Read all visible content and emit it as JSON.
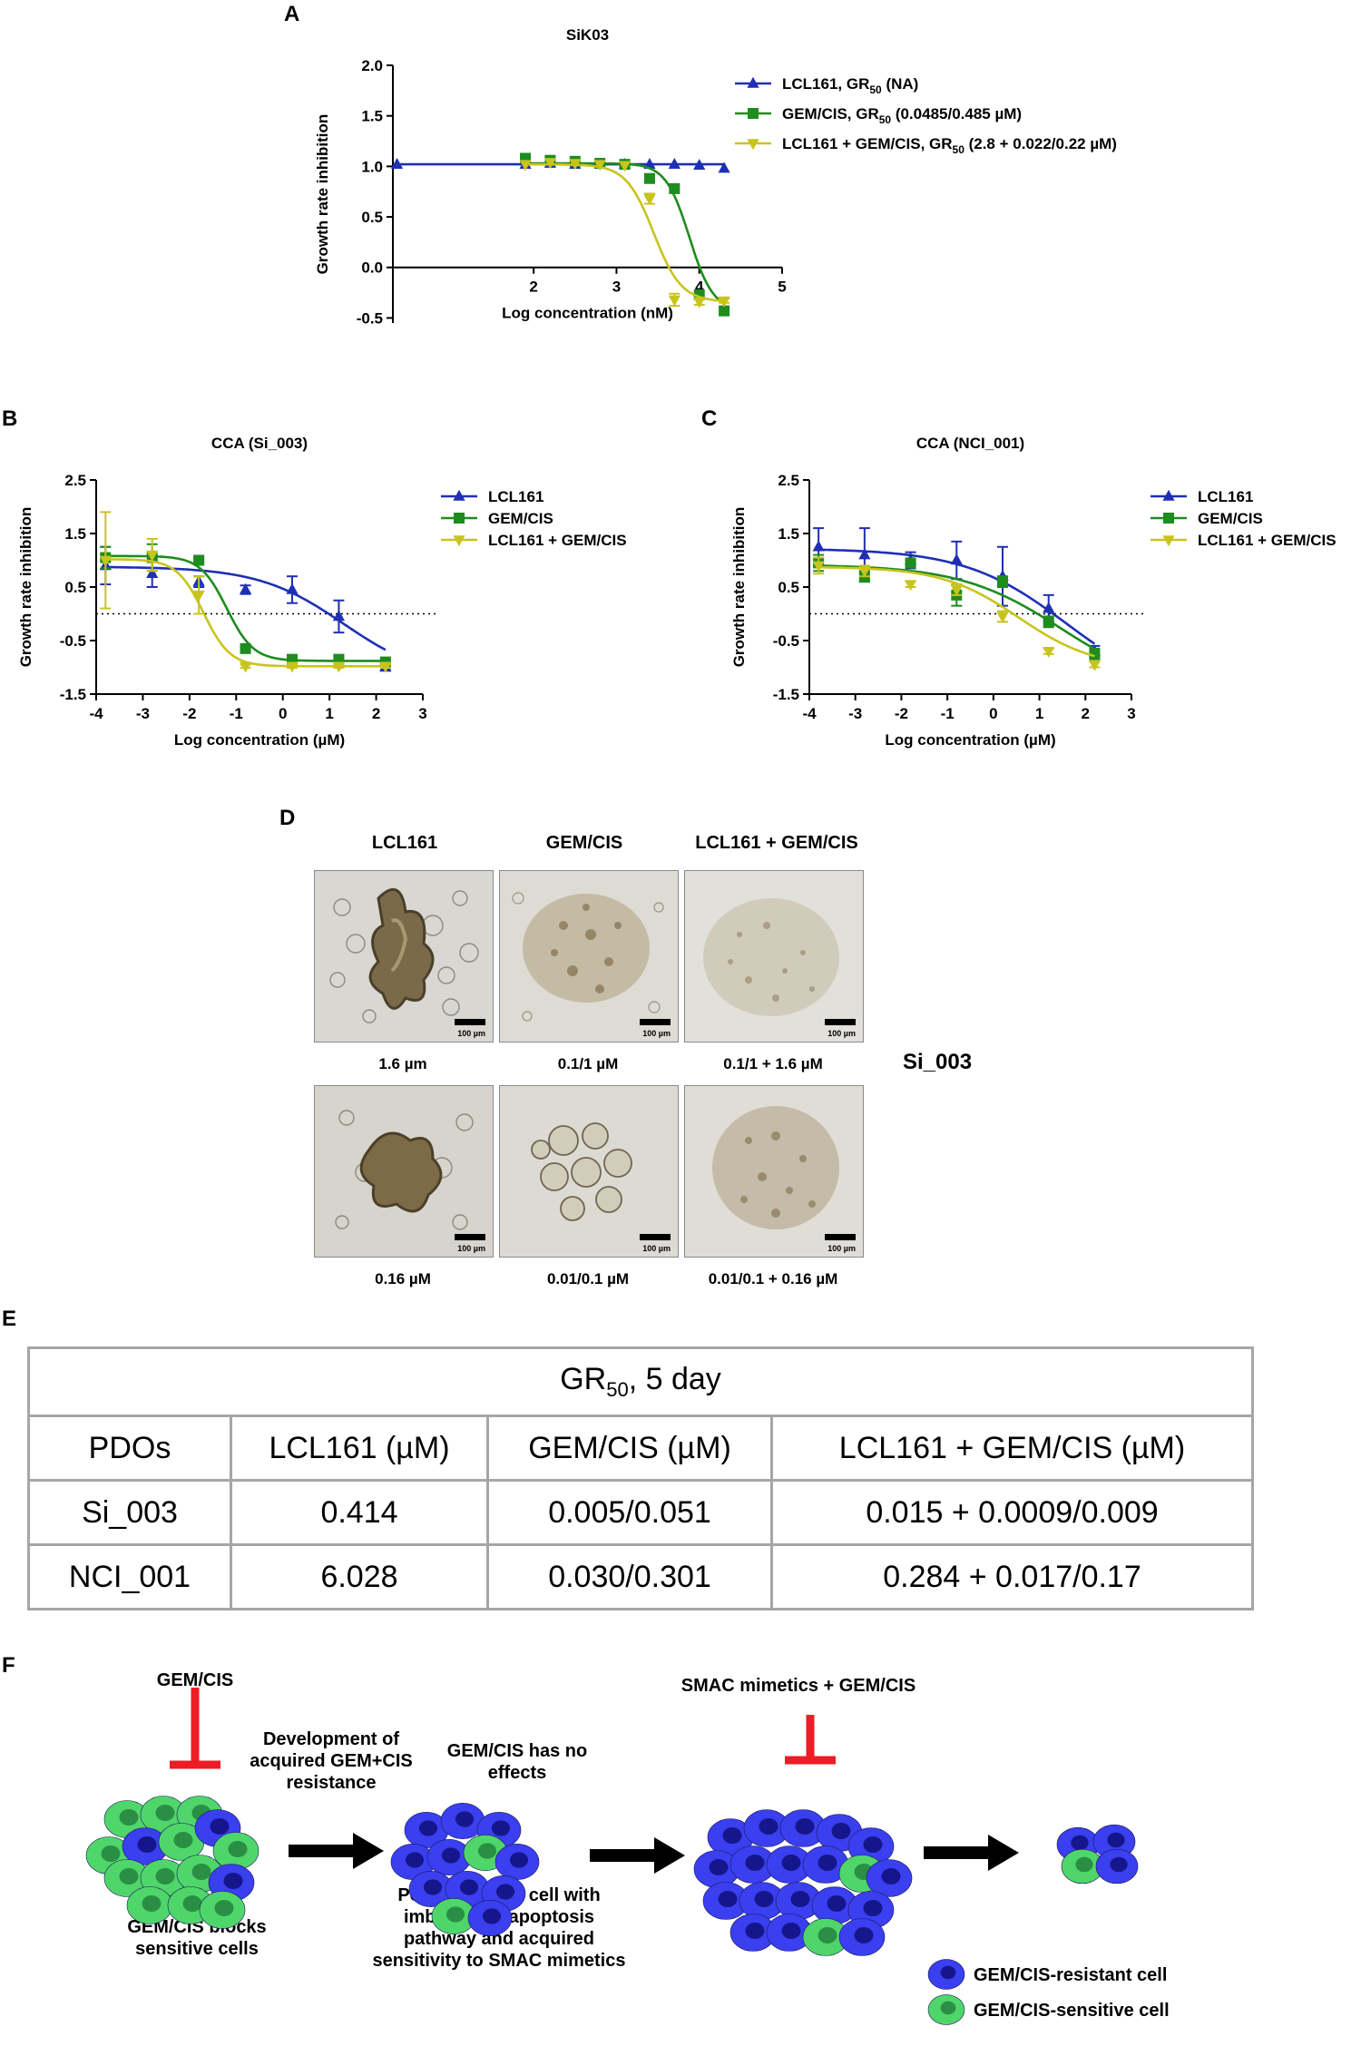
{
  "panels": {
    "A": "A",
    "B": "B",
    "C": "C",
    "D": "D",
    "E": "E",
    "F": "F"
  },
  "chart_data": [
    {
      "id": "A",
      "type": "line",
      "title": "SiK03",
      "xlabel": "Log concentration (nM)",
      "ylabel": "Growth rate inhibition",
      "xlim": [
        0.3,
        5
      ],
      "ylim": [
        -0.55,
        2.0
      ],
      "xticks": [
        "2",
        "3",
        "4",
        "5"
      ],
      "yticks": [
        "-0.5",
        "0.0",
        "0.5",
        "1.0",
        "1.5",
        "2.0"
      ],
      "reference_line": null,
      "series": [
        {
          "name": "LCL161",
          "legend_main": "LCL161, GR",
          "legend_sub": "50",
          "legend_rest": " (NA)",
          "color": "#1f2fb4",
          "marker": "triangle-up",
          "x": [
            0.35,
            1.9,
            2.2,
            2.5,
            2.8,
            3.1,
            3.4,
            3.7,
            4.0,
            4.3
          ],
          "y": [
            1.02,
            1.02,
            1.03,
            1.02,
            1.02,
            1.02,
            1.02,
            1.02,
            1.01,
            0.98
          ],
          "fit": {
            "top": 1.02,
            "bottom": 1.02,
            "ec": 4.0,
            "hill": 1
          }
        },
        {
          "name": "GEM/CIS",
          "legend_main": "GEM/CIS, GR",
          "legend_sub": "50",
          "legend_rest": " (0.0485/0.485 µM)",
          "color": "#1e8c1e",
          "marker": "square",
          "x": [
            1.9,
            2.2,
            2.5,
            2.8,
            3.1,
            3.4,
            3.7,
            4.0,
            4.3
          ],
          "y": [
            1.08,
            1.06,
            1.05,
            1.03,
            1.02,
            0.88,
            0.78,
            -0.27,
            -0.43
          ],
          "fit": {
            "top": 1.03,
            "bottom": -0.43,
            "ec": 3.88,
            "hill": 7
          }
        },
        {
          "name": "LCL161 + GEM/CIS",
          "legend_main": "LCL161 + GEM/CIS, GR",
          "legend_sub": "50",
          "legend_rest": " (2.8 + 0.022/0.22 µM)",
          "color": "#c8c41e",
          "marker": "triangle-down",
          "x": [
            1.9,
            2.2,
            2.5,
            2.8,
            3.1,
            3.4,
            3.7,
            4.0,
            4.3
          ],
          "y": [
            1.02,
            1.04,
            1.03,
            1.02,
            1.01,
            0.68,
            -0.32,
            -0.34,
            -0.33
          ],
          "err": [
            0,
            0,
            0,
            0,
            0,
            0.05,
            0.06,
            0.03,
            0.02
          ],
          "fit": {
            "top": 1.02,
            "bottom": -0.34,
            "ec": 3.45,
            "hill": 6
          }
        }
      ]
    },
    {
      "id": "B",
      "type": "line",
      "title": "CCA (Si_003)",
      "xlabel": "Log concentration (µM)",
      "ylabel": "Growth rate inhibition",
      "xlim": [
        -4,
        3
      ],
      "ylim": [
        -1.5,
        2.5
      ],
      "xticks": [
        "-4",
        "-3",
        "-2",
        "-1",
        "0",
        "1",
        "2",
        "3"
      ],
      "yticks": [
        "-1.5",
        "-0.5",
        "0.5",
        "1.5",
        "2.5"
      ],
      "reference_line": 0,
      "series": [
        {
          "name": "LCL161",
          "legend_main": "LCL161",
          "color": "#1f2fb4",
          "marker": "triangle-up",
          "x": [
            -3.8,
            -2.8,
            -1.8,
            -0.8,
            0.2,
            1.2,
            2.2
          ],
          "y": [
            0.9,
            0.75,
            0.6,
            0.45,
            0.45,
            -0.05,
            -1.0
          ],
          "err": [
            0.35,
            0.25,
            0.1,
            0.08,
            0.25,
            0.3,
            0.05
          ],
          "fit": {
            "top": 0.88,
            "bottom": -1.25,
            "ec": 1.3,
            "hill": 1.1
          }
        },
        {
          "name": "GEM/CIS",
          "legend_main": "GEM/CIS",
          "color": "#1e8c1e",
          "marker": "square",
          "x": [
            -3.8,
            -2.8,
            -1.8,
            -0.8,
            0.2,
            1.2,
            2.2
          ],
          "y": [
            1.05,
            1.05,
            1.0,
            -0.65,
            -0.85,
            -0.85,
            -0.9
          ],
          "err": [
            0.2,
            0.25,
            0.03,
            0.03,
            0.03,
            0.03,
            0.03
          ],
          "fit": {
            "top": 1.08,
            "bottom": -0.88,
            "ec": -1.2,
            "hill": 3.5
          }
        },
        {
          "name": "LCL161 + GEM/CIS",
          "legend_main": "LCL161 + GEM/CIS",
          "color": "#c8c41e",
          "marker": "triangle-down",
          "x": [
            -3.8,
            -2.8,
            -1.8,
            -0.8,
            0.2,
            1.2,
            2.2
          ],
          "y": [
            1.0,
            1.1,
            0.35,
            -0.98,
            -0.98,
            -0.98,
            -0.98
          ],
          "err": [
            0.9,
            0.3,
            0.35,
            0.03,
            0.03,
            0.03,
            0.03
          ],
          "fit": {
            "top": 1.02,
            "bottom": -0.98,
            "ec": -1.7,
            "hill": 3.5
          }
        }
      ]
    },
    {
      "id": "C",
      "type": "line",
      "title": "CCA (NCI_001)",
      "xlabel": "Log concentration (µM)",
      "ylabel": "Growth rate inhibition",
      "xlim": [
        -4,
        3
      ],
      "ylim": [
        -1.5,
        2.5
      ],
      "xticks": [
        "-4",
        "-3",
        "-2",
        "-1",
        "0",
        "1",
        "2",
        "3"
      ],
      "yticks": [
        "-1.5",
        "-0.5",
        "0.5",
        "1.5",
        "2.5"
      ],
      "reference_line": 0,
      "series": [
        {
          "name": "LCL161",
          "legend_main": "LCL161",
          "color": "#1f2fb4",
          "marker": "triangle-up",
          "x": [
            -3.8,
            -2.8,
            -1.8,
            -0.8,
            0.2,
            1.2,
            2.2
          ],
          "y": [
            1.25,
            1.1,
            1.0,
            1.0,
            0.7,
            0.1,
            -0.7
          ],
          "err": [
            0.35,
            0.5,
            0.15,
            0.35,
            0.55,
            0.25,
            0.1
          ],
          "fit": {
            "top": 1.22,
            "bottom": -1.6,
            "ec": 1.6,
            "hill": 0.9
          }
        },
        {
          "name": "GEM/CIS",
          "legend_main": "GEM/CIS",
          "color": "#1e8c1e",
          "marker": "square",
          "x": [
            -3.8,
            -2.8,
            -1.8,
            -0.8,
            0.2,
            1.2,
            2.2
          ],
          "y": [
            0.95,
            0.7,
            0.95,
            0.35,
            0.6,
            -0.15,
            -0.75
          ],
          "err": [
            0.15,
            0.1,
            0.05,
            0.2,
            0.1,
            0.1,
            0.1
          ],
          "fit": {
            "top": 0.92,
            "bottom": -1.5,
            "ec": 1.5,
            "hill": 0.9
          }
        },
        {
          "name": "LCL161 + GEM/CIS",
          "legend_main": "LCL161 + GEM/CIS",
          "color": "#c8c41e",
          "marker": "triangle-down",
          "x": [
            -3.8,
            -2.8,
            -1.8,
            -0.8,
            0.2,
            1.2,
            2.2
          ],
          "y": [
            0.9,
            0.8,
            0.55,
            0.45,
            -0.05,
            -0.7,
            -0.95
          ],
          "err": [
            0.15,
            0.1,
            0.05,
            0.1,
            0.1,
            0.05,
            0.05
          ],
          "fit": {
            "top": 0.88,
            "bottom": -1.02,
            "ec": 0.55,
            "hill": 1.2
          }
        }
      ]
    }
  ],
  "panel_d": {
    "headers": [
      "LCL161",
      "GEM/CIS",
      "LCL161 + GEM/CIS"
    ],
    "row_label": "Si_003",
    "scalebar": "100 µm",
    "captions_row1": [
      "1.6 µm",
      "0.1/1 µM",
      "0.1/1 + 1.6 µM"
    ],
    "captions_row2": [
      "0.16 µM",
      "0.01/0.1 µM",
      "0.01/0.1 + 0.16 µM"
    ]
  },
  "table": {
    "title_main": "GR",
    "title_sub": "50",
    "title_rest": ", 5 day",
    "columns": [
      "PDOs",
      "LCL161 (µM)",
      "GEM/CIS (µM)",
      "LCL161 + GEM/CIS (µM)"
    ],
    "rows": [
      [
        "Si_003",
        "0.414",
        "0.005/0.051",
        "0.015 + 0.0009/0.009"
      ],
      [
        "NCI_001",
        "6.028",
        "0.030/0.301",
        "0.284 + 0.017/0.17"
      ]
    ]
  },
  "schematic": {
    "gemcis_top": "GEM/CIS",
    "blocks_text": "GEM/CIS  blocks sensitive cells",
    "development_text": "Development of acquired GEM+CIS resistance",
    "no_effects_text": "GEM/CIS has no effects",
    "populations_text": "Populations of cell with imbalanced apoptosis pathway and acquired sensitivity to SMAC mimetics",
    "smac_text": "SMAC mimetics + GEM/CIS",
    "legend_resistant": "GEM/CIS-resistant cell",
    "legend_sensitive": "GEM/CIS-sensitive cell",
    "colors": {
      "resistant": "#3a3ff0",
      "resistant_nucleus": "#16168c",
      "sensitive": "#4fd66a",
      "sensitive_nucleus": "#2a8f45",
      "inhibit": "#ee1c24"
    }
  }
}
